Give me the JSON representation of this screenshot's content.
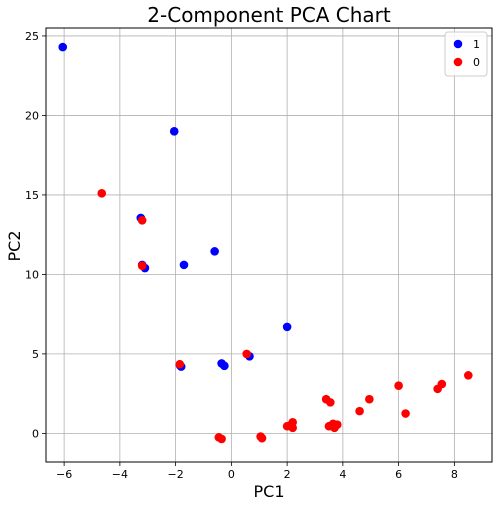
{
  "chart_data": {
    "type": "scatter",
    "title": "2-Component PCA Chart",
    "xlabel": "PC1",
    "ylabel": "PC2",
    "xlim": [
      -6.65,
      9.35
    ],
    "ylim": [
      -1.8,
      25.5
    ],
    "xticks": [
      -6,
      -4,
      -2,
      0,
      2,
      4,
      6,
      8
    ],
    "yticks": [
      0,
      5,
      10,
      15,
      20,
      25
    ],
    "grid": true,
    "legend_position": "top-right",
    "series": [
      {
        "name": "1",
        "color": "#0000ff",
        "points": [
          [
            -6.05,
            24.3
          ],
          [
            -2.05,
            19.0
          ],
          [
            -3.25,
            13.55
          ],
          [
            -3.1,
            10.4
          ],
          [
            -1.7,
            10.6
          ],
          [
            -0.6,
            11.45
          ],
          [
            2.0,
            6.7
          ],
          [
            0.65,
            4.85
          ],
          [
            -0.35,
            4.4
          ],
          [
            -0.25,
            4.25
          ],
          [
            -1.85,
            4.3
          ],
          [
            -1.8,
            4.2
          ],
          [
            -3.2,
            10.6
          ]
        ]
      },
      {
        "name": "0",
        "color": "#ff0000",
        "points": [
          [
            -4.65,
            15.1
          ],
          [
            -3.2,
            13.4
          ],
          [
            -3.2,
            10.55
          ],
          [
            0.55,
            5.0
          ],
          [
            -1.85,
            4.35
          ],
          [
            -0.45,
            -0.25
          ],
          [
            -0.35,
            -0.35
          ],
          [
            1.05,
            -0.2
          ],
          [
            1.1,
            -0.3
          ],
          [
            2.0,
            0.45
          ],
          [
            2.15,
            0.55
          ],
          [
            2.2,
            0.7
          ],
          [
            2.2,
            0.35
          ],
          [
            3.4,
            2.15
          ],
          [
            3.55,
            1.95
          ],
          [
            3.5,
            0.45
          ],
          [
            3.65,
            0.6
          ],
          [
            3.7,
            0.35
          ],
          [
            3.8,
            0.55
          ],
          [
            4.6,
            1.4
          ],
          [
            4.95,
            2.15
          ],
          [
            6.0,
            3.0
          ],
          [
            6.25,
            1.25
          ],
          [
            7.4,
            2.8
          ],
          [
            7.55,
            3.1
          ],
          [
            8.5,
            3.65
          ]
        ]
      }
    ]
  }
}
